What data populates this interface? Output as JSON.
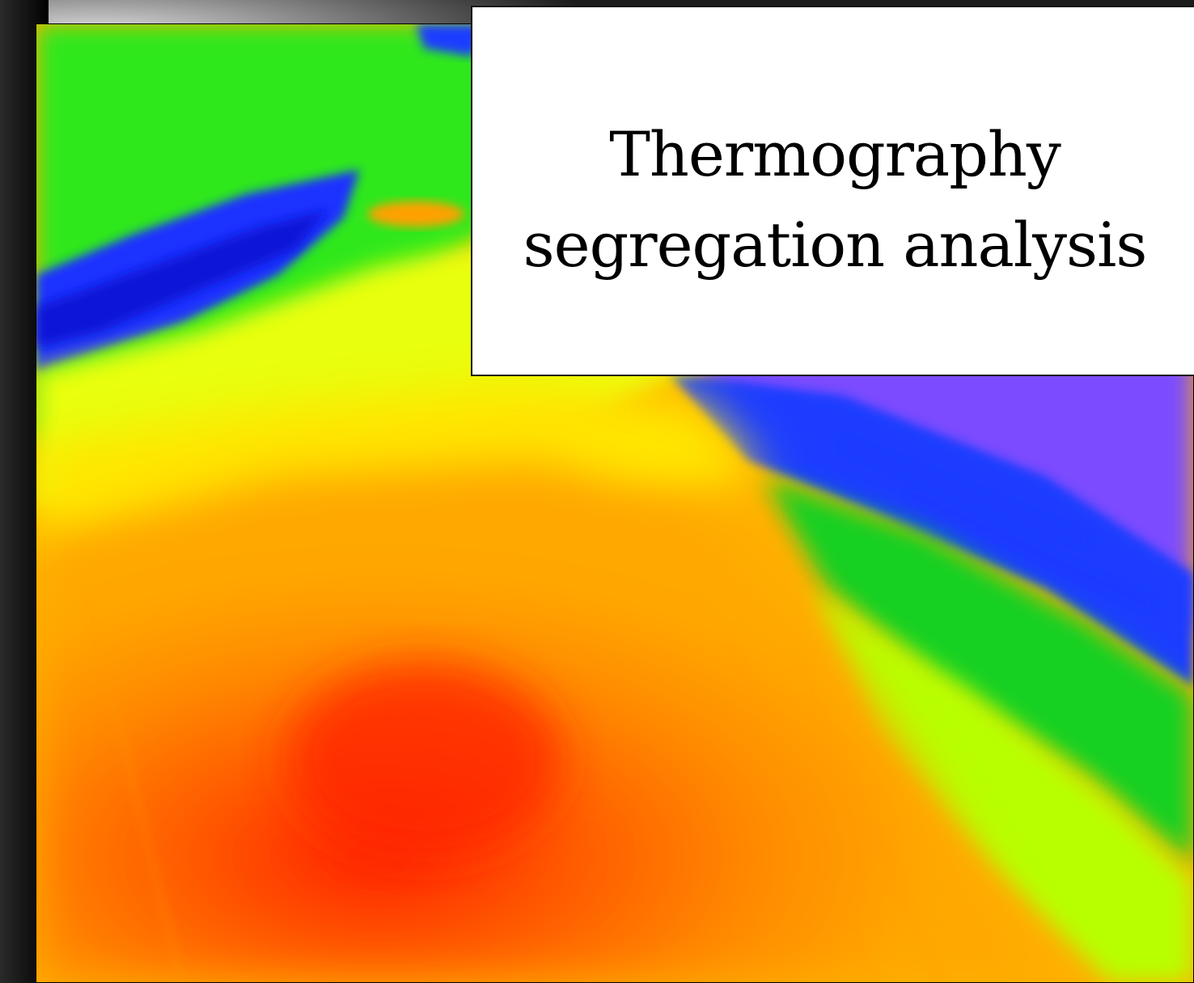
{
  "slide": {
    "title_line_1": "Thermography",
    "title_line_2": "segregation analysis"
  },
  "image": {
    "subject": "thermal-camera-view",
    "palette": [
      "#ff2a00",
      "#ff6a00",
      "#ffa000",
      "#ffd000",
      "#ffff00",
      "#7dff00",
      "#10d020",
      "#1a40ff",
      "#8050ff"
    ]
  }
}
